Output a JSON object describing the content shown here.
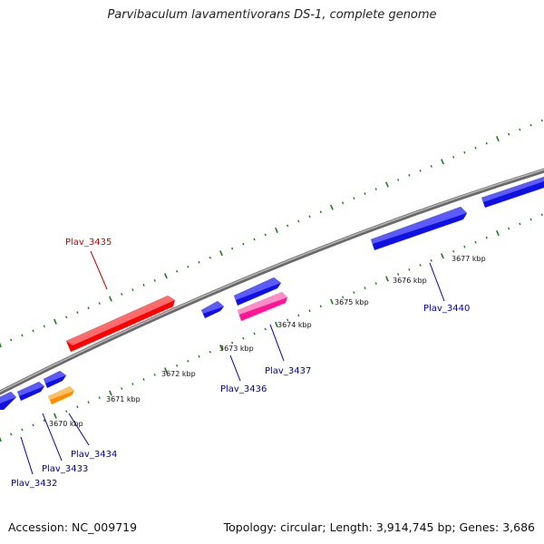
{
  "title": "Parvibaculum lavamentivorans DS-1, complete genome",
  "footer": {
    "accession": "Accession: NC_009719",
    "summary": "Topology: circular; Length: 3,914,745 bp; Genes: 3,686"
  },
  "colors": {
    "backbone": "#8a8a8a",
    "tick": "#1e7a1e",
    "gene_default": "#1010e0",
    "gene_highlight_label": "#cc0000",
    "label_blue": "#0000aa"
  },
  "kbp_labels": [
    "3670 kbp",
    "3671 kbp",
    "3672 kbp",
    "3673 kbp",
    "3674 kbp",
    "3675 kbp",
    "3676 kbp",
    "3677 kbp"
  ],
  "genes": [
    {
      "label": "Plav_3432",
      "color": "#1010e0",
      "strand": "forward"
    },
    {
      "label": "Plav_3433",
      "color": "#1010e0",
      "strand": "forward"
    },
    {
      "label": "Plav_3434",
      "color": "#ff8c00",
      "strand": "forward"
    },
    {
      "label": "Plav_3435",
      "color": "#ff0000",
      "strand": "reverse"
    },
    {
      "label": "Plav_3436",
      "color": "#1010e0",
      "strand": "forward"
    },
    {
      "label": "Plav_3437",
      "color": "#ff1493",
      "strand": "forward"
    },
    {
      "label": "Plav_3440",
      "color": "#1010e0",
      "strand": "forward"
    }
  ]
}
